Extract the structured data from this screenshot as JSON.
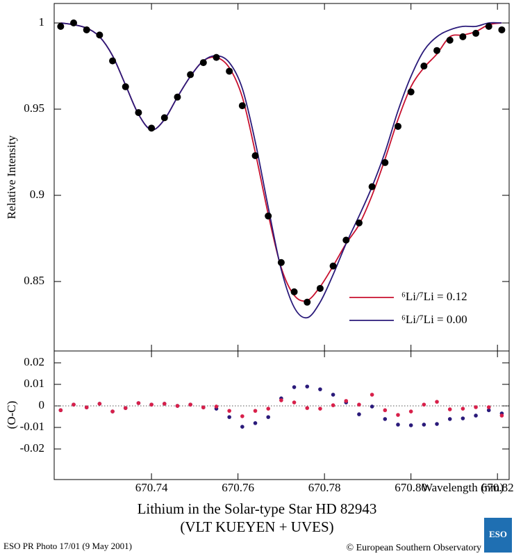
{
  "title": [
    "Lithium in the Solar-type Star HD 82943",
    "(VLT KUEYEN + UVES)"
  ],
  "footer": {
    "left": "ESO PR Photo 17/01 (9 May 2001)",
    "right": "© European Southern Observatory",
    "logo": "ESO"
  },
  "chart_data": [
    {
      "type": "line",
      "ylabel": "Relative Intensity",
      "x": [
        670.719,
        670.722,
        670.725,
        670.728,
        670.731,
        670.734,
        670.737,
        670.74,
        670.743,
        670.746,
        670.749,
        670.752,
        670.755,
        670.758,
        670.761,
        670.764,
        670.767,
        670.77,
        670.773,
        670.776,
        670.779,
        670.782,
        670.785,
        670.788,
        670.791,
        670.794,
        670.797,
        670.8,
        670.803,
        670.806,
        670.809,
        670.812,
        670.815,
        670.818,
        670.821
      ],
      "xlim": [
        670.7175,
        670.8227
      ],
      "ylim": [
        0.8097,
        1.0113
      ],
      "yticks": [
        0.85,
        0.9,
        0.95,
        1
      ],
      "series": [
        {
          "name": "⁶Li/⁷Li = 0.12",
          "color": "#c8102e",
          "values": [
            1.0,
            0.999,
            0.997,
            0.992,
            0.981,
            0.964,
            0.947,
            0.938,
            0.944,
            0.957,
            0.969,
            0.978,
            0.98,
            0.974,
            0.957,
            0.925,
            0.889,
            0.858,
            0.842,
            0.839,
            0.847,
            0.859,
            0.872,
            0.883,
            0.9,
            0.921,
            0.944,
            0.963,
            0.974,
            0.982,
            0.992,
            0.993,
            0.995,
            0.999,
            1.0
          ]
        },
        {
          "name": "⁶Li/⁷Li = 0.00",
          "color": "#2a1a7a",
          "values": [
            1.0,
            0.999,
            0.997,
            0.992,
            0.981,
            0.964,
            0.947,
            0.938,
            0.944,
            0.957,
            0.969,
            0.978,
            0.981,
            0.977,
            0.962,
            0.931,
            0.893,
            0.857,
            0.835,
            0.829,
            0.838,
            0.854,
            0.872,
            0.888,
            0.905,
            0.925,
            0.949,
            0.969,
            0.984,
            0.992,
            0.996,
            0.998,
            0.998,
            1.0,
            1.0
          ]
        }
      ],
      "observed": {
        "color": "#000000",
        "values": [
          0.998,
          1.0,
          0.996,
          0.993,
          0.978,
          0.963,
          0.948,
          0.939,
          0.945,
          0.957,
          0.97,
          0.977,
          0.98,
          0.972,
          0.952,
          0.923,
          0.888,
          0.861,
          0.844,
          0.838,
          0.846,
          0.859,
          0.874,
          0.884,
          0.905,
          0.919,
          0.94,
          0.96,
          0.975,
          0.984,
          0.99,
          0.992,
          0.994,
          0.998,
          0.996
        ]
      },
      "legend": "lower right"
    },
    {
      "type": "scatter",
      "ylabel": "(O-C)",
      "xlabel": "Wavelength (nm)",
      "x": [
        670.719,
        670.722,
        670.725,
        670.728,
        670.731,
        670.734,
        670.737,
        670.74,
        670.743,
        670.746,
        670.749,
        670.752,
        670.755,
        670.758,
        670.761,
        670.764,
        670.767,
        670.77,
        670.773,
        670.776,
        670.779,
        670.782,
        670.785,
        670.788,
        670.791,
        670.794,
        670.797,
        670.8,
        670.803,
        670.806,
        670.809,
        670.812,
        670.815,
        670.818,
        670.821
      ],
      "xlim": [
        670.7175,
        670.8227
      ],
      "ylim": [
        -0.0342,
        0.0255
      ],
      "xticks": [
        670.74,
        670.76,
        670.78,
        {
          "value": 670.8,
          "label": "670.80"
        },
        670.82
      ],
      "yticks": [
        -0.02,
        -0.01,
        0,
        0.01,
        0.02
      ],
      "series": [
        {
          "color": "#2a1a7a",
          "values": [
            -0.002,
            0.0006,
            -0.0007,
            0.001,
            -0.0026,
            -0.001,
            0.0013,
            0.0006,
            0.001,
            0,
            0.0006,
            -0.0007,
            -0.0013,
            -0.0052,
            -0.0097,
            -0.008,
            -0.0052,
            0.0035,
            0.0087,
            0.009,
            0.0077,
            0.0052,
            0.0016,
            -0.0039,
            -0.0003,
            -0.0061,
            -0.0087,
            -0.009,
            -0.0087,
            -0.0084,
            -0.0061,
            -0.0058,
            -0.0045,
            -0.002,
            -0.0035
          ]
        },
        {
          "color": "#d8204a",
          "values": [
            -0.002,
            0.0006,
            -0.0007,
            0.001,
            -0.0026,
            -0.001,
            0.0013,
            0.0006,
            0.001,
            0,
            0.0006,
            -0.0007,
            -0.0003,
            -0.0023,
            -0.0048,
            -0.0023,
            -0.0013,
            0.0026,
            0.0016,
            -0.001,
            -0.0013,
            0.0003,
            0.0023,
            0.0006,
            0.0052,
            -0.002,
            -0.0042,
            -0.0026,
            0.0006,
            0.0019,
            -0.0016,
            -0.0013,
            -0.0006,
            -0.0006,
            -0.0045
          ]
        }
      ],
      "zero_line": true
    }
  ]
}
